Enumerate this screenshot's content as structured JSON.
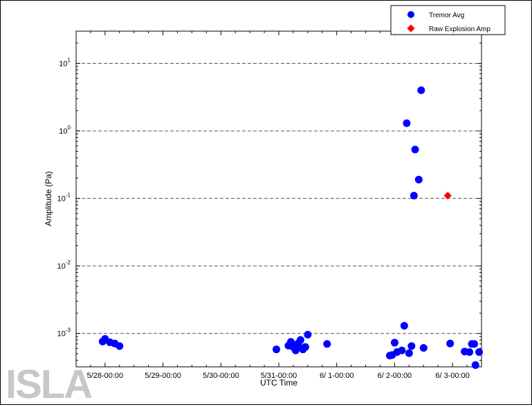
{
  "chart_data": {
    "type": "scatter",
    "title": "",
    "xlabel": "UTC Time",
    "ylabel": "Amplitude (Pa)",
    "x_axis": {
      "kind": "datetime",
      "range": [
        "5/27-12:00",
        "6/3-12:00"
      ],
      "tick_labels": [
        "5/28-00:00",
        "5/29-00:00",
        "5/30-00:00",
        "5/31-00:00",
        "6/ 1-00:00",
        "6/ 2-00:00",
        "6/ 3-00:00"
      ]
    },
    "y_axis": {
      "scale": "log",
      "range": [
        0.00032,
        30
      ],
      "tick_labels": [
        {
          "base": "10",
          "exp": "-3"
        },
        {
          "base": "10",
          "exp": "-2"
        },
        {
          "base": "10",
          "exp": "-1"
        },
        {
          "base": "10",
          "exp": "0"
        },
        {
          "base": "10",
          "exp": "1"
        }
      ]
    },
    "grid": "horizontal dashed at decades",
    "legend_position": "top-right",
    "series": [
      {
        "name": "Tremor Avg",
        "marker": "circle",
        "color": "#0000ff",
        "points": [
          {
            "x": "5/27-23:00",
            "y": 0.00076
          },
          {
            "x": "5/28-00:00",
            "y": 0.00083
          },
          {
            "x": "5/28-02:00",
            "y": 0.00074
          },
          {
            "x": "5/28-04:00",
            "y": 0.00071
          },
          {
            "x": "5/28-06:00",
            "y": 0.00065
          },
          {
            "x": "5/30-23:00",
            "y": 0.00058
          },
          {
            "x": "5/31-04:00",
            "y": 0.00066
          },
          {
            "x": "5/31-05:00",
            "y": 0.00075
          },
          {
            "x": "5/31-06:00",
            "y": 0.00063
          },
          {
            "x": "5/31-07:00",
            "y": 0.00056
          },
          {
            "x": "5/31-08:00",
            "y": 0.00071
          },
          {
            "x": "5/31-08:00",
            "y": 0.00068
          },
          {
            "x": "5/31-09:00",
            "y": 0.0008
          },
          {
            "x": "5/31-10:00",
            "y": 0.00058
          },
          {
            "x": "5/31-11:00",
            "y": 0.00063
          },
          {
            "x": "5/31-12:00",
            "y": 0.00096
          },
          {
            "x": "5/31-20:00",
            "y": 0.0007
          },
          {
            "x": "6/1-22:00",
            "y": 0.00047
          },
          {
            "x": "6/1-23:00",
            "y": 0.00048
          },
          {
            "x": "6/2-00:00",
            "y": 0.00073
          },
          {
            "x": "6/2-01:00",
            "y": 0.00053
          },
          {
            "x": "6/2-03:00",
            "y": 0.00056
          },
          {
            "x": "6/2-04:00",
            "y": 0.0013
          },
          {
            "x": "6/2-05:00",
            "y": 1.3
          },
          {
            "x": "6/2-06:00",
            "y": 0.00051
          },
          {
            "x": "6/2-07:00",
            "y": 0.00065
          },
          {
            "x": "6/2-08:00",
            "y": 0.11
          },
          {
            "x": "6/2-08:30",
            "y": 0.53
          },
          {
            "x": "6/2-10:00",
            "y": 0.19
          },
          {
            "x": "6/2-11:00",
            "y": 4.0
          },
          {
            "x": "6/2-12:00",
            "y": 0.00061
          },
          {
            "x": "6/2-23:00",
            "y": 0.00071
          },
          {
            "x": "6/3-05:00",
            "y": 0.00054
          },
          {
            "x": "6/3-07:00",
            "y": 0.00053
          },
          {
            "x": "6/3-08:00",
            "y": 0.0007
          },
          {
            "x": "6/3-09:00",
            "y": 0.0007
          },
          {
            "x": "6/3-09:30",
            "y": 0.00034
          },
          {
            "x": "6/3-11:00",
            "y": 0.00053
          }
        ]
      },
      {
        "name": "Raw Explosion Amp",
        "marker": "diamond",
        "color": "#ff0000",
        "points": [
          {
            "x": "6/2-22:00",
            "y": 0.11
          }
        ]
      }
    ]
  },
  "watermark": "ISLA"
}
